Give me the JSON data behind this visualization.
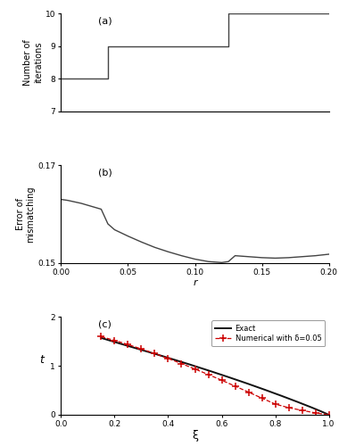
{
  "fig_width": 3.8,
  "fig_height": 5.0,
  "dpi": 100,
  "background_color": "#ffffff",
  "panel_a": {
    "label": "(a)",
    "ylabel": "Number of\niterations",
    "ylim": [
      7,
      10
    ],
    "yticks": [
      7,
      8,
      9,
      10
    ],
    "xlim": [
      0.0,
      0.2
    ],
    "steps_x": [
      0.0,
      0.035,
      0.035,
      0.125,
      0.125,
      0.2
    ],
    "steps_y": [
      8,
      8,
      9,
      9,
      10,
      10
    ],
    "line_color": "#444444",
    "line_width": 1.0
  },
  "panel_b": {
    "label": "(b)",
    "ylabel": "Error of\nmismatching",
    "xlabel": "r",
    "ylim": [
      0.15,
      0.17
    ],
    "yticks": [
      0.15,
      0.17
    ],
    "xlim": [
      0.0,
      0.2
    ],
    "xticks": [
      0.0,
      0.05,
      0.1,
      0.15,
      0.2
    ],
    "curve_x": [
      0.0,
      0.005,
      0.01,
      0.015,
      0.02,
      0.025,
      0.03,
      0.035,
      0.04,
      0.05,
      0.06,
      0.07,
      0.08,
      0.09,
      0.1,
      0.11,
      0.12,
      0.125,
      0.13,
      0.14,
      0.15,
      0.16,
      0.17,
      0.18,
      0.19,
      0.2
    ],
    "curve_y": [
      0.163,
      0.1628,
      0.1625,
      0.1622,
      0.1618,
      0.1614,
      0.161,
      0.158,
      0.1568,
      0.1555,
      0.1543,
      0.1532,
      0.1523,
      0.1515,
      0.1508,
      0.1503,
      0.1501,
      0.1503,
      0.1515,
      0.1513,
      0.1511,
      0.151,
      0.1511,
      0.1513,
      0.1515,
      0.1518
    ],
    "line_color": "#444444",
    "line_width": 1.0
  },
  "panel_c": {
    "label": "(c)",
    "ylabel": "t",
    "xlabel": "ξ",
    "ylim": [
      0.0,
      2.0
    ],
    "yticks": [
      0.0,
      1.0,
      2.0
    ],
    "xlim": [
      0.0,
      1.0
    ],
    "xticks": [
      0.0,
      0.2,
      0.4,
      0.6,
      0.8,
      1.0
    ],
    "exact_x": [
      0.15,
      0.18,
      0.22,
      0.26,
      0.3,
      0.35,
      0.4,
      0.45,
      0.5,
      0.55,
      0.6,
      0.65,
      0.7,
      0.75,
      0.8,
      0.85,
      0.9,
      0.95,
      1.0
    ],
    "exact_y": [
      1.57,
      1.52,
      1.455,
      1.392,
      1.328,
      1.247,
      1.164,
      1.08,
      0.994,
      0.906,
      0.816,
      0.724,
      0.63,
      0.533,
      0.434,
      0.332,
      0.227,
      0.118,
      0.0
    ],
    "numerical_x": [
      0.15,
      0.2,
      0.25,
      0.3,
      0.35,
      0.4,
      0.45,
      0.5,
      0.55,
      0.6,
      0.65,
      0.7,
      0.75,
      0.8,
      0.85,
      0.9,
      0.95,
      1.0
    ],
    "numerical_y": [
      1.595,
      1.52,
      1.435,
      1.345,
      1.25,
      1.15,
      1.045,
      0.935,
      0.822,
      0.705,
      0.585,
      0.463,
      0.34,
      0.218,
      0.145,
      0.09,
      0.038,
      0.0
    ],
    "exact_color": "#111111",
    "numerical_color": "#cc0000",
    "exact_lw": 1.4,
    "numerical_lw": 0.9,
    "legend_exact": "Exact",
    "legend_numerical": "Numerical with δ=0.05"
  }
}
